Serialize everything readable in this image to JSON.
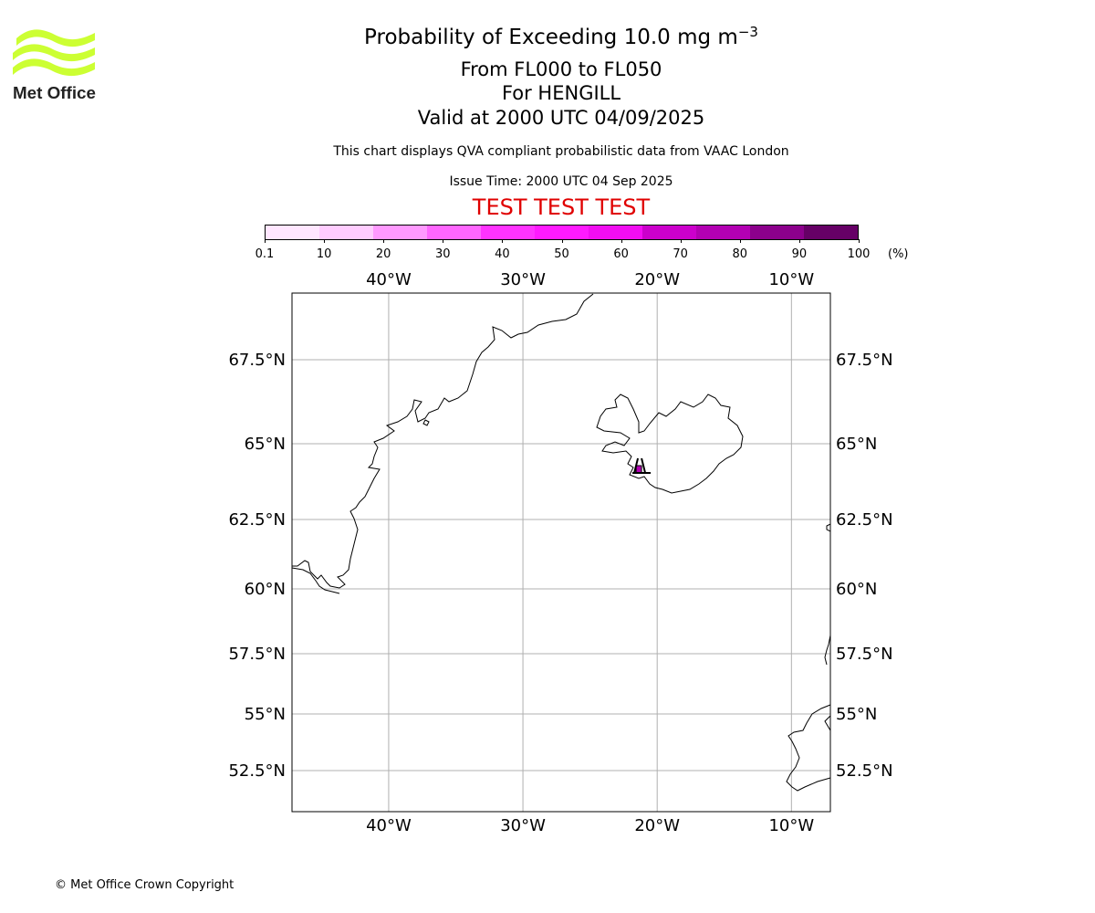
{
  "title": {
    "prefix": "Probability of Exceeding 10.0 mg m",
    "superscript": "−3",
    "flight_levels": "From FL000 to FL050",
    "location": "For HENGILL",
    "valid": "Valid at 2000 UTC 04/09/2025"
  },
  "description": "This chart displays QVA compliant probabilistic data from VAAC London",
  "issue_time": "Issue Time: 2000 UTC 04 Sep 2025",
  "test_banner": "TEST TEST TEST",
  "logo": {
    "text": "Met Office",
    "color": "#ccff33"
  },
  "colorbar": {
    "ticks": [
      "0.1",
      "10",
      "20",
      "30",
      "40",
      "50",
      "60",
      "70",
      "80",
      "90",
      "100"
    ],
    "unit": "(%)",
    "colors": [
      "#ffe6ff",
      "#ffccff",
      "#ff99ff",
      "#ff66ff",
      "#ff33ff",
      "#ff1aff",
      "#f20df2",
      "#cc00cc",
      "#b300b3",
      "#8c008c",
      "#660066"
    ]
  },
  "map": {
    "projection": "plate-carree",
    "lon_range": [
      -47.2,
      -7.1
    ],
    "lat_range": [
      51.0,
      69.5
    ],
    "lon_ticks": [
      {
        "value": -40,
        "label": "40°W"
      },
      {
        "value": -30,
        "label": "30°W"
      },
      {
        "value": -20,
        "label": "20°W"
      },
      {
        "value": -10,
        "label": "10°W"
      }
    ],
    "lat_ticks": [
      {
        "value": 67.5,
        "label": "67.5°N"
      },
      {
        "value": 65,
        "label": "65°N"
      },
      {
        "value": 62.5,
        "label": "62.5°N"
      },
      {
        "value": 60,
        "label": "60°N"
      },
      {
        "value": 57.5,
        "label": "57.5°N"
      },
      {
        "value": 55,
        "label": "55°N"
      },
      {
        "value": 52.5,
        "label": "52.5°N"
      }
    ],
    "grid": true,
    "probability_area": {
      "lon": -21.3,
      "lat": 64.05,
      "color": "#b300b3"
    }
  },
  "copyright": "© Met Office Crown Copyright"
}
